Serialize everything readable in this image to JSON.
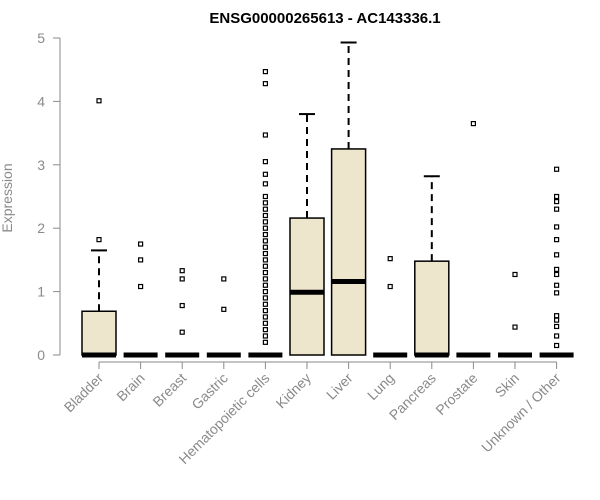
{
  "chart_data": {
    "type": "boxplot",
    "title": "ENSG00000265613 - AC143336.1",
    "xlabel": "",
    "ylabel": "Expression",
    "ylim": [
      0,
      5
    ],
    "yticks": [
      "0",
      "1",
      "2",
      "3",
      "4",
      "5"
    ],
    "categories": [
      "Bladder",
      "Brain",
      "Breast",
      "Gastric",
      "Hematopoietic cells",
      "Kidney",
      "Liver",
      "Lung",
      "Pancreas",
      "Prostate",
      "Skin",
      "Unknown / Other"
    ],
    "boxes": [
      {
        "min": 0,
        "q1": 0,
        "median": 0,
        "q3": 0.69,
        "max": 1.65,
        "outliers": [
          1.82,
          4.01
        ]
      },
      {
        "min": 0,
        "q1": 0,
        "median": 0,
        "q3": 0,
        "max": 0,
        "outliers": [
          1.08,
          1.5,
          1.75
        ]
      },
      {
        "min": 0,
        "q1": 0,
        "median": 0,
        "q3": 0,
        "max": 0,
        "outliers": [
          0.36,
          0.78,
          1.2,
          1.33
        ]
      },
      {
        "min": 0,
        "q1": 0,
        "median": 0,
        "q3": 0,
        "max": 0,
        "outliers": [
          0.72,
          1.2
        ]
      },
      {
        "min": 0,
        "q1": 0,
        "median": 0,
        "q3": 0,
        "max": 0,
        "outliers": [
          0.2,
          0.3,
          0.4,
          0.5,
          0.6,
          0.7,
          0.8,
          0.9,
          1.0,
          1.1,
          1.2,
          1.3,
          1.4,
          1.5,
          1.6,
          1.7,
          1.8,
          1.9,
          2.0,
          2.1,
          2.2,
          2.3,
          2.4,
          2.5,
          2.7,
          2.85,
          3.05,
          3.47,
          4.28,
          4.47
        ]
      },
      {
        "min": 0,
        "q1": 0,
        "median": 0.99,
        "q3": 2.16,
        "max": 3.8,
        "outliers": []
      },
      {
        "min": 0,
        "q1": 0,
        "median": 1.16,
        "q3": 3.25,
        "max": 4.93,
        "outliers": []
      },
      {
        "min": 0,
        "q1": 0,
        "median": 0,
        "q3": 0,
        "max": 0,
        "outliers": [
          1.08,
          1.52
        ]
      },
      {
        "min": 0,
        "q1": 0,
        "median": 0,
        "q3": 1.48,
        "max": 2.82,
        "outliers": []
      },
      {
        "min": 0,
        "q1": 0,
        "median": 0,
        "q3": 0,
        "max": 0,
        "outliers": [
          3.65
        ]
      },
      {
        "min": 0,
        "q1": 0,
        "median": 0,
        "q3": 0,
        "max": 0,
        "outliers": [
          0.44,
          1.27
        ]
      },
      {
        "min": 0,
        "q1": 0,
        "median": 0,
        "q3": 0,
        "max": 0,
        "outliers": [
          0.15,
          0.3,
          0.45,
          0.55,
          0.62,
          0.98,
          1.1,
          1.27,
          1.35,
          1.58,
          1.82,
          2.02,
          2.3,
          2.42,
          2.5,
          2.93
        ]
      }
    ],
    "colors": {
      "box_fill": "#ede6cc",
      "stroke": "#000000",
      "axis": "#8a8a8a"
    },
    "grid": false,
    "legend": "none"
  }
}
